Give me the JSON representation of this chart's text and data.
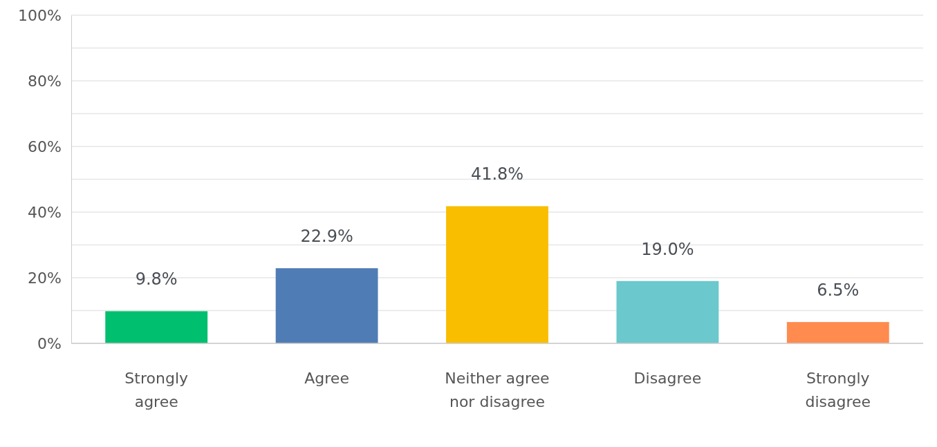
{
  "chart_data": {
    "type": "bar",
    "categories": [
      "Strongly agree",
      "Agree",
      "Neither agree nor disagree",
      "Disagree",
      "Strongly disagree"
    ],
    "values": [
      9.8,
      22.9,
      41.8,
      19.0,
      6.5
    ],
    "colors": [
      "#00bf6f",
      "#507cb6",
      "#f9be00",
      "#6bc8cd",
      "#ff8b4f"
    ],
    "value_labels": [
      "9.8%",
      "22.9%",
      "41.8%",
      "19.0%",
      "6.5%"
    ],
    "ylim": [
      0,
      100
    ],
    "yticks": [
      {
        "value": 0,
        "label": "0%"
      },
      {
        "value": 10,
        "label": null
      },
      {
        "value": 20,
        "label": "20%"
      },
      {
        "value": 30,
        "label": null
      },
      {
        "value": 40,
        "label": "40%"
      },
      {
        "value": 50,
        "label": null
      },
      {
        "value": 60,
        "label": "60%"
      },
      {
        "value": 70,
        "label": null
      },
      {
        "value": 80,
        "label": "80%"
      },
      {
        "value": 90,
        "label": null
      },
      {
        "value": 100,
        "label": "100%"
      }
    ],
    "grid": "y"
  }
}
